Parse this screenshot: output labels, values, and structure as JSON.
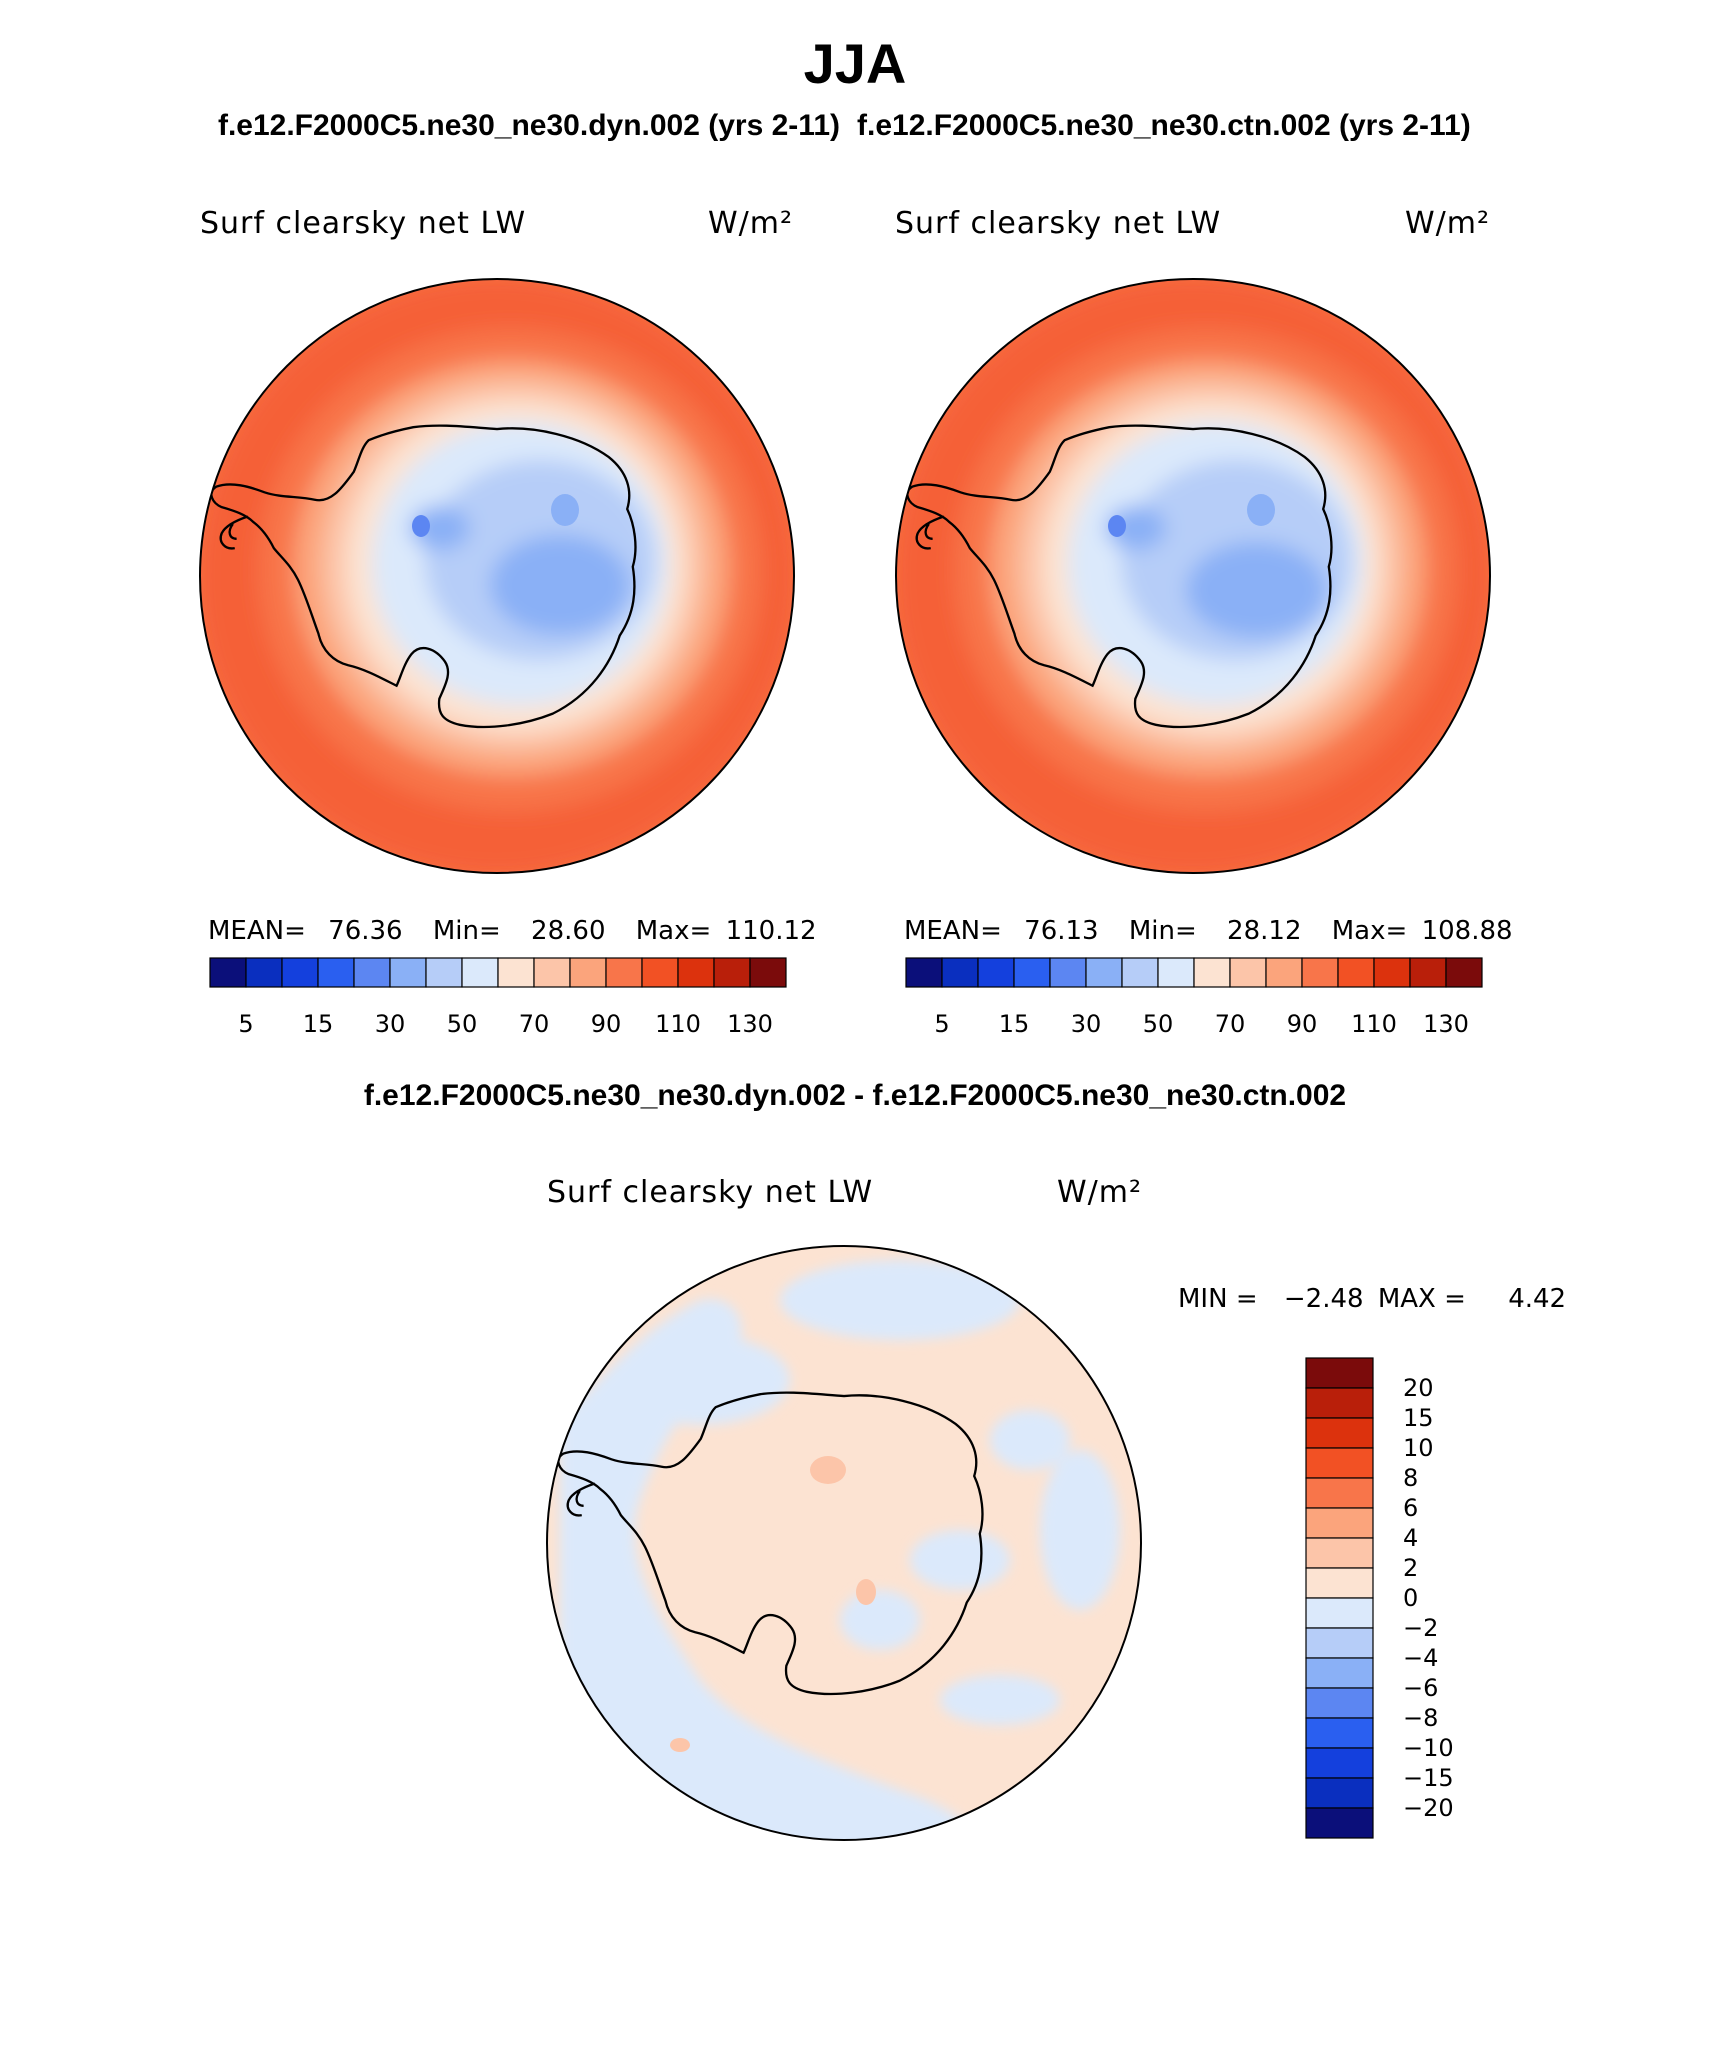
{
  "page": {
    "season": "JJA",
    "subtitle_left": "f.e12.F2000C5.ne30_ne30.dyn.002 (yrs 2-11)",
    "subtitle_right": "f.e12.F2000C5.ne30_ne30.ctn.002 (yrs 2-11)",
    "diff_title": "f.e12.F2000C5.ne30_ne30.dyn.002 - f.e12.F2000C5.ne30_ne30.ctn.002"
  },
  "chart_data": [
    {
      "type": "heatmap",
      "projection": "south-polar-stereographic",
      "title": "Surf clearsky net LW",
      "units": "W/m²",
      "case": "f.e12.F2000C5.ne30_ne30.dyn.002 (yrs 2-11)",
      "stats": {
        "mean_label": "MEAN=",
        "mean": "76.36",
        "min_label": "Min=",
        "min": "28.60",
        "max_label": "Max=",
        "max": "110.12"
      },
      "colorbar": {
        "orientation": "horizontal",
        "tick_labels": [
          "5",
          "15",
          "30",
          "50",
          "70",
          "90",
          "110",
          "130"
        ],
        "colors": [
          "#0b0f7a",
          "#0a2fbf",
          "#1440dd",
          "#2a5ff0",
          "#5c86f2",
          "#8ab0f6",
          "#b6cdf8",
          "#dbe9fb",
          "#fce3d2",
          "#fcc5a9",
          "#fba47c",
          "#f8754a",
          "#f25124",
          "#dc320d",
          "#b91f0a",
          "#7b0b0b"
        ]
      }
    },
    {
      "type": "heatmap",
      "projection": "south-polar-stereographic",
      "title": "Surf clearsky net LW",
      "units": "W/m²",
      "case": "f.e12.F2000C5.ne30_ne30.ctn.002 (yrs 2-11)",
      "stats": {
        "mean_label": "MEAN=",
        "mean": "76.13",
        "min_label": "Min=",
        "min": "28.12",
        "max_label": "Max=",
        "max": "108.88"
      },
      "colorbar": {
        "orientation": "horizontal",
        "tick_labels": [
          "5",
          "15",
          "30",
          "50",
          "70",
          "90",
          "110",
          "130"
        ],
        "colors": [
          "#0b0f7a",
          "#0a2fbf",
          "#1440dd",
          "#2a5ff0",
          "#5c86f2",
          "#8ab0f6",
          "#b6cdf8",
          "#dbe9fb",
          "#fce3d2",
          "#fcc5a9",
          "#fba47c",
          "#f8754a",
          "#f25124",
          "#dc320d",
          "#b91f0a",
          "#7b0b0b"
        ]
      }
    },
    {
      "type": "heatmap",
      "projection": "south-polar-stereographic",
      "title": "Surf clearsky net LW",
      "units": "W/m²",
      "case": "difference",
      "stats": {
        "min_label": "MIN =",
        "min": "−2.48",
        "max_label": "MAX =",
        "max": "4.42"
      },
      "colorbar": {
        "orientation": "vertical",
        "tick_labels": [
          "20",
          "15",
          "10",
          "8",
          "6",
          "4",
          "2",
          "0",
          "−2",
          "−4",
          "−6",
          "−8",
          "−10",
          "−15",
          "−20"
        ],
        "colors": [
          "#7b0b0b",
          "#b91f0a",
          "#dc320d",
          "#f25124",
          "#f8754a",
          "#fba47c",
          "#fcc5a9",
          "#fce3d2",
          "#dbe9fb",
          "#b6cdf8",
          "#8ab0f6",
          "#5c86f2",
          "#2a5ff0",
          "#1440dd",
          "#0a2fbf",
          "#0b0f7a"
        ]
      }
    }
  ]
}
